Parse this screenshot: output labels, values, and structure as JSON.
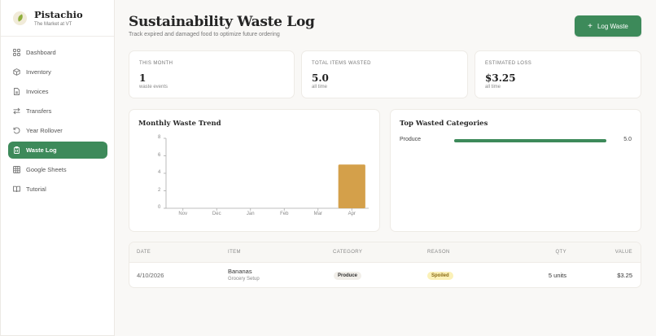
{
  "sidebar": {
    "brand": {
      "name": "Pistachio",
      "subtitle": "The Market at VT",
      "logo_icon": "pistachio-leaf-icon"
    },
    "items": [
      {
        "label": "Dashboard",
        "icon": "grid-icon",
        "active": false
      },
      {
        "label": "Inventory",
        "icon": "box-icon",
        "active": false
      },
      {
        "label": "Invoices",
        "icon": "file-icon",
        "active": false
      },
      {
        "label": "Transfers",
        "icon": "arrows-swap-icon",
        "active": false
      },
      {
        "label": "Year Rollover",
        "icon": "rotate-ccw-icon",
        "active": false
      },
      {
        "label": "Waste Log",
        "icon": "clipboard-trash-icon",
        "active": true
      },
      {
        "label": "Google Sheets",
        "icon": "sheet-icon",
        "active": false
      },
      {
        "label": "Tutorial",
        "icon": "book-open-icon",
        "active": false
      }
    ]
  },
  "header": {
    "title": "Sustainability Waste Log",
    "subtitle": "Track expired and damaged food to optimize future ordering",
    "action_label": "Log Waste",
    "action_icon": "plus-icon"
  },
  "stats": [
    {
      "label": "THIS MONTH",
      "value": "1",
      "sub": "waste events"
    },
    {
      "label": "TOTAL ITEMS WASTED",
      "value": "5.0",
      "sub": "all time"
    },
    {
      "label": "ESTIMATED LOSS",
      "value": "$3.25",
      "sub": "all time"
    }
  ],
  "trend": {
    "title": "Monthly Waste Trend"
  },
  "top_categories": {
    "title": "Top Wasted Categories",
    "items": [
      {
        "name": "Produce",
        "value": "5.0",
        "percent": 100
      }
    ]
  },
  "chart_data": {
    "type": "bar",
    "title": "Monthly Waste Trend",
    "categories": [
      "Nov",
      "Dec",
      "Jan",
      "Feb",
      "Mar",
      "Apr"
    ],
    "values": [
      0,
      0,
      0,
      0,
      0,
      5
    ],
    "yticks": [
      "0",
      "2",
      "4",
      "6",
      "8"
    ],
    "ylim": [
      0,
      8
    ],
    "xlabel": "",
    "ylabel": "",
    "grid": false,
    "bar_color": "#d4a04a"
  },
  "table": {
    "columns": [
      "DATE",
      "ITEM",
      "CATEGORY",
      "REASON",
      "QTY",
      "VALUE"
    ],
    "rows": [
      {
        "date": "4/10/2026",
        "item": "Bananas",
        "item_sub": "Grocery Setup",
        "category": "Produce",
        "reason": "Spoiled",
        "qty": "5 units",
        "value": "$3.25"
      }
    ]
  },
  "colors": {
    "accent": "#3d8a5a",
    "bar": "#d4a04a",
    "background": "#f9f8f6",
    "spoiled_badge": "#fbf1b8"
  }
}
